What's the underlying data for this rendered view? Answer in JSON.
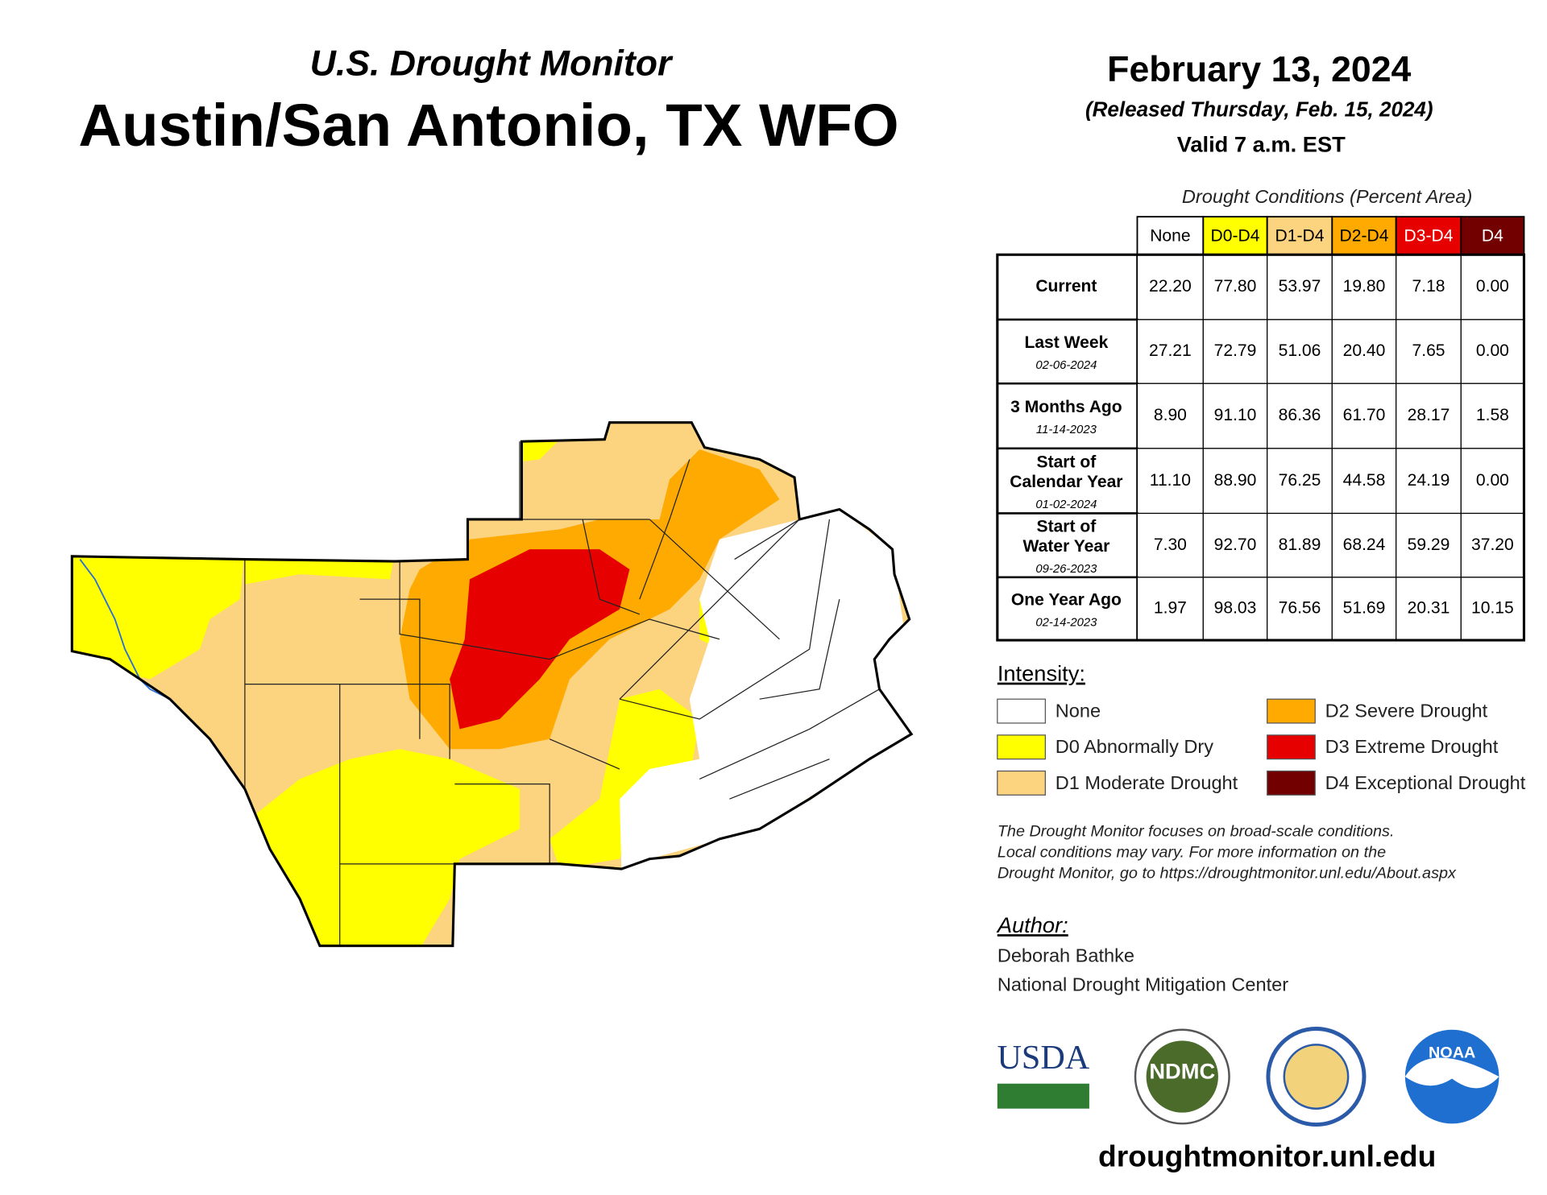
{
  "header": {
    "subtitle": "U.S. Drought Monitor",
    "title": "Austin/San Antonio, TX WFO",
    "date": "February 13, 2024",
    "released": "(Released Thursday, Feb. 15, 2024)",
    "valid": "Valid 7 a.m. EST"
  },
  "table": {
    "caption": "Drought Conditions (Percent Area)",
    "columns": [
      {
        "label": "None",
        "color": "#ffffff",
        "text_color": "#000000"
      },
      {
        "label": "D0-D4",
        "color": "#ffff00",
        "text_color": "#000000"
      },
      {
        "label": "D1-D4",
        "color": "#fcd37f",
        "text_color": "#000000"
      },
      {
        "label": "D2-D4",
        "color": "#ffaa00",
        "text_color": "#000000"
      },
      {
        "label": "D3-D4",
        "color": "#e60000",
        "text_color": "#ffffff"
      },
      {
        "label": "D4",
        "color": "#730000",
        "text_color": "#ffffff"
      }
    ],
    "rows": [
      {
        "label": [
          "Current"
        ],
        "values": [
          "22.20",
          "77.80",
          "53.97",
          "19.80",
          "7.18",
          "0.00"
        ]
      },
      {
        "label": [
          "Last Week"
        ],
        "date": "02-06-2024",
        "values": [
          "27.21",
          "72.79",
          "51.06",
          "20.40",
          "7.65",
          "0.00"
        ]
      },
      {
        "label": [
          "3 Months Ago"
        ],
        "date": "11-14-2023",
        "values": [
          "8.90",
          "91.10",
          "86.36",
          "61.70",
          "28.17",
          "1.58"
        ]
      },
      {
        "label": [
          "Start of",
          "Calendar Year"
        ],
        "date": "01-02-2024",
        "values": [
          "11.10",
          "88.90",
          "76.25",
          "44.58",
          "24.19",
          "0.00"
        ]
      },
      {
        "label": [
          "Start of",
          "Water Year"
        ],
        "date": "09-26-2023",
        "values": [
          "7.30",
          "92.70",
          "81.89",
          "68.24",
          "59.29",
          "37.20"
        ]
      },
      {
        "label": [
          "One Year Ago"
        ],
        "date": "02-14-2023",
        "values": [
          "1.97",
          "98.03",
          "76.56",
          "51.69",
          "20.31",
          "10.15"
        ]
      }
    ]
  },
  "legend": {
    "title": "Intensity:",
    "items": [
      {
        "label": "None",
        "color": "#ffffff"
      },
      {
        "label": "D0 Abnormally Dry",
        "color": "#ffff00"
      },
      {
        "label": "D1 Moderate Drought",
        "color": "#fcd37f"
      },
      {
        "label": "D2 Severe Drought",
        "color": "#ffaa00"
      },
      {
        "label": "D3 Extreme Drought",
        "color": "#e60000"
      },
      {
        "label": "D4 Exceptional Drought",
        "color": "#730000"
      }
    ]
  },
  "note": [
    "The Drought Monitor focuses on broad-scale conditions.",
    "Local conditions may vary. For more information on the",
    "Drought Monitor, go to https://droughtmonitor.unl.edu/About.aspx"
  ],
  "author": {
    "title": "Author:",
    "name": "Deborah Bathke",
    "org": "National Drought Mitigation Center"
  },
  "logos": [
    "USDA",
    "NDMC",
    "NOAA"
  ],
  "url": "droughtmonitor.unl.edu"
}
